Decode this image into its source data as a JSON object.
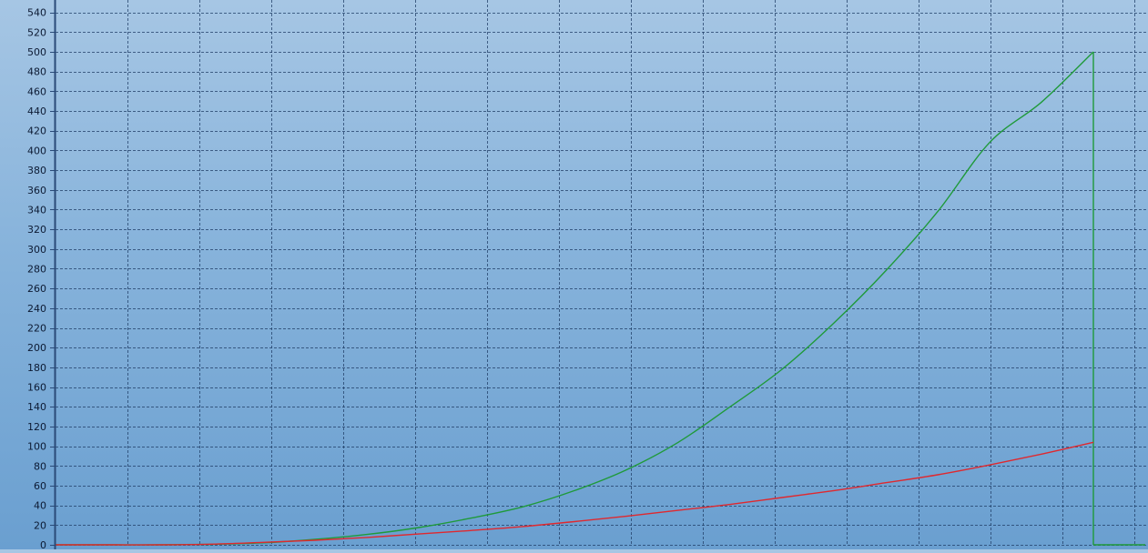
{
  "chart_data": {
    "type": "line",
    "title": "",
    "xlabel": "",
    "ylabel": "",
    "ylim": [
      0,
      550
    ],
    "y_ticks": [
      0,
      20,
      40,
      60,
      80,
      100,
      120,
      140,
      160,
      180,
      200,
      220,
      240,
      260,
      280,
      300,
      320,
      340,
      360,
      380,
      400,
      420,
      440,
      460,
      480,
      500,
      520,
      540
    ],
    "y_tick_labels": [
      "0",
      "20",
      "40",
      "60",
      "80",
      "100",
      "120",
      "140",
      "160",
      "180",
      "200",
      "220",
      "240",
      "260",
      "280",
      "300",
      "320",
      "340",
      "360",
      "380",
      "400",
      "420",
      "440",
      "460",
      "480",
      "500",
      "520",
      "540"
    ],
    "x_gridlines": 15,
    "grid": true,
    "grid_style": "dashed",
    "legend": "none",
    "series": [
      {
        "color": "#1f9a3a",
        "x": [
          0.0,
          0.05,
          0.1,
          0.15,
          0.2,
          0.25,
          0.3,
          0.35,
          0.4,
          0.45,
          0.5,
          0.55,
          0.6,
          0.65,
          0.7,
          0.75,
          0.8,
          0.85,
          0.9,
          0.95,
          1.0,
          1.0,
          1.05
        ],
        "values": [
          0,
          0,
          0,
          0.5,
          2,
          5.5,
          10.5,
          17.5,
          27,
          38.5,
          55,
          76,
          104,
          140,
          178,
          225,
          278,
          338,
          408,
          449,
          500,
          0,
          0
        ]
      },
      {
        "color": "#e0282e",
        "x": [
          0.0,
          0.05,
          0.1,
          0.15,
          0.2,
          0.25,
          0.3,
          0.35,
          0.4,
          0.45,
          0.5,
          0.55,
          0.6,
          0.65,
          0.7,
          0.75,
          0.8,
          0.85,
          0.9,
          0.95,
          1.0
        ],
        "values": [
          0,
          0,
          0,
          0.6,
          2.5,
          4.6,
          7.5,
          11,
          14.5,
          18.5,
          23.5,
          29,
          35,
          41,
          48,
          55,
          63,
          71,
          81,
          92,
          104
        ]
      }
    ]
  }
}
